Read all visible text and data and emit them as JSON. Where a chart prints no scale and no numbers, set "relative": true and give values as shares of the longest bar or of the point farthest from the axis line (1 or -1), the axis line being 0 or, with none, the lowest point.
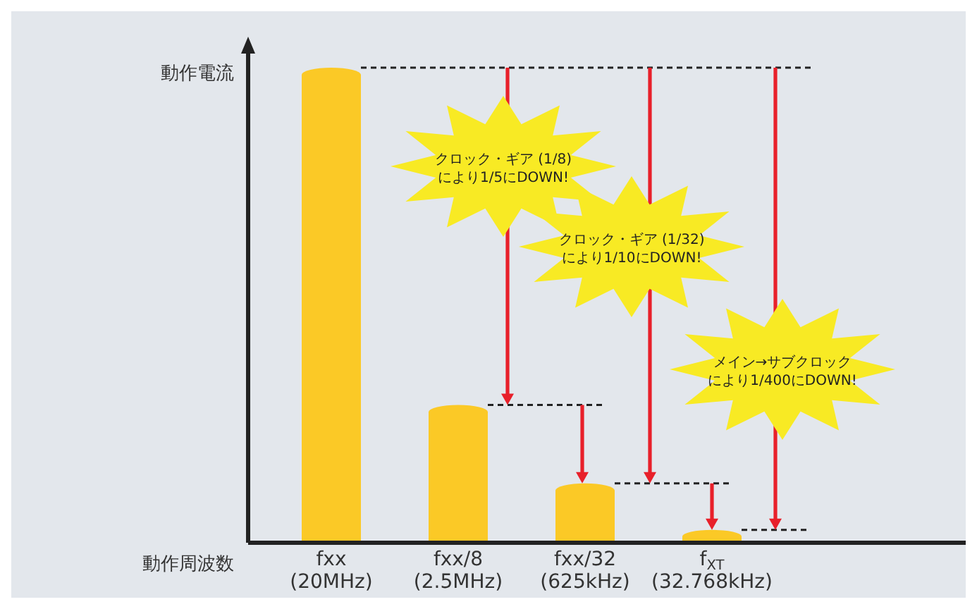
{
  "chart_data": {
    "type": "bar",
    "relative": true,
    "xlabel": "動作周波数",
    "ylabel": "動作電流",
    "categories": [
      "fxx\n(20MHz)",
      "fxx/8\n(2.5MHz)",
      "fxx/32\n(625kHz)",
      "f$_{XT}$\n(32.768kHz)"
    ],
    "values": [
      1,
      0.29,
      0.125,
      0.027
    ],
    "color": "#fbc926",
    "annotations": [
      "クロック・ギア (1/8)により1/5にDOWN!",
      "クロック・ギア (1/32)により1/10にDOWN!",
      "メイン→サブクロックにより1/400にDOWN!"
    ]
  }
}
